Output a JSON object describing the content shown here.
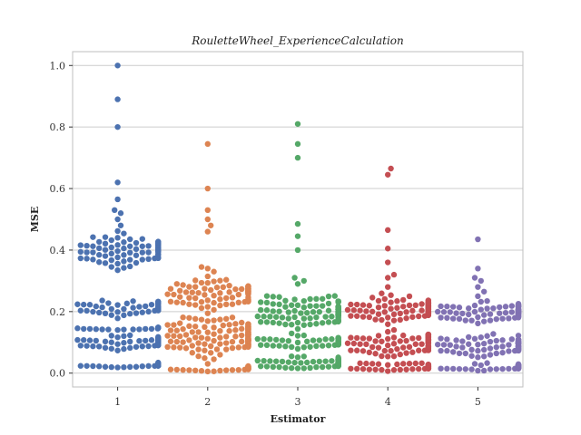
{
  "chart_data": {
    "type": "scatter",
    "subtype": "swarm",
    "title": "RouletteWheel_ExperienceCalculation",
    "xlabel": "Estimator",
    "ylabel": "MSE",
    "ylim": [
      -0.045,
      1.045
    ],
    "yticks": [
      "0.0",
      "0.2",
      "0.4",
      "0.6",
      "0.8",
      "1.0"
    ],
    "grid": true,
    "legend": "none",
    "categories": [
      "1",
      "2",
      "3",
      "4",
      "5"
    ],
    "colors": [
      "#4c72b0",
      "#dd8452",
      "#55a868",
      "#c44e52",
      "#8172b3"
    ],
    "series": [
      {
        "category": "1",
        "clusters": [
          {
            "center": 0.025,
            "spread": 0.008,
            "count": 40
          },
          {
            "center": 0.1,
            "spread": 0.02,
            "count": 70
          },
          {
            "center": 0.145,
            "spread": 0.005,
            "count": 20
          },
          {
            "center": 0.21,
            "spread": 0.025,
            "count": 60
          },
          {
            "center": 0.4,
            "spread": 0.05,
            "count": 95
          }
        ],
        "points": [
          0.48,
          0.5,
          0.52,
          0.53,
          0.565,
          0.62,
          0.8,
          0.89,
          1.0
        ]
      },
      {
        "category": "2",
        "clusters": [
          {
            "center": 0.015,
            "spread": 0.01,
            "count": 40
          },
          {
            "center": 0.12,
            "spread": 0.07,
            "count": 160
          },
          {
            "center": 0.26,
            "spread": 0.045,
            "count": 85
          }
        ],
        "points": [
          0.33,
          0.34,
          0.345,
          0.46,
          0.48,
          0.5,
          0.53,
          0.6,
          0.745
        ]
      },
      {
        "category": "3",
        "clusters": [
          {
            "center": 0.03,
            "spread": 0.02,
            "count": 90
          },
          {
            "center": 0.1,
            "spread": 0.02,
            "count": 55
          },
          {
            "center": 0.2,
            "spread": 0.05,
            "count": 120
          }
        ],
        "points": [
          0.29,
          0.3,
          0.31,
          0.4,
          0.445,
          0.485,
          0.7,
          0.745,
          0.81
        ]
      },
      {
        "category": "4",
        "clusters": [
          {
            "center": 0.02,
            "spread": 0.012,
            "count": 60
          },
          {
            "center": 0.1,
            "spread": 0.04,
            "count": 95
          },
          {
            "center": 0.21,
            "spread": 0.035,
            "count": 100
          }
        ],
        "points": [
          0.28,
          0.31,
          0.32,
          0.36,
          0.405,
          0.465,
          0.645,
          0.665
        ]
      },
      {
        "category": "5",
        "clusters": [
          {
            "center": 0.02,
            "spread": 0.012,
            "count": 60
          },
          {
            "center": 0.09,
            "spread": 0.035,
            "count": 95
          },
          {
            "center": 0.2,
            "spread": 0.03,
            "count": 90
          }
        ],
        "points": [
          0.25,
          0.265,
          0.28,
          0.3,
          0.31,
          0.34,
          0.435
        ]
      }
    ]
  }
}
